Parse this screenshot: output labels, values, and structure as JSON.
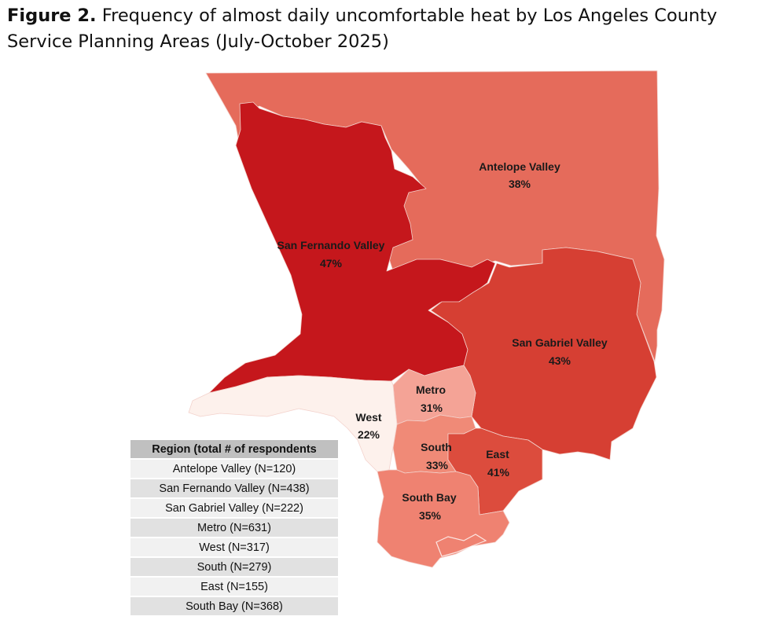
{
  "title": {
    "prefix": "Figure 2.",
    "text": " Frequency of almost daily uncomfortable heat by Los Angeles County Service Planning Areas (July-October 2025)"
  },
  "regions": [
    {
      "name": "Antelope Valley",
      "value": "38%",
      "color": "#e56b5b"
    },
    {
      "name": "San Fernando Valley",
      "value": "47%",
      "color": "#c5171c"
    },
    {
      "name": "San Gabriel Valley",
      "value": "43%",
      "color": "#d63f33"
    },
    {
      "name": "Metro",
      "value": "31%",
      "color": "#f4a396"
    },
    {
      "name": "West",
      "value": "22%",
      "color": "#fdf1ec"
    },
    {
      "name": "South",
      "value": "33%",
      "color": "#f08a77"
    },
    {
      "name": "East",
      "value": "41%",
      "color": "#dc4c3d"
    },
    {
      "name": "South Bay",
      "value": "35%",
      "color": "#ef8271"
    }
  ],
  "legend": {
    "header": "Region (total # of respondents",
    "rows": [
      "Antelope Valley (N=120)",
      "San Fernando Valley (N=438)",
      "San Gabriel Valley (N=222)",
      "Metro (N=631)",
      "West (N=317)",
      "South (N=279)",
      "East (N=155)",
      "South Bay (N=368)"
    ]
  }
}
